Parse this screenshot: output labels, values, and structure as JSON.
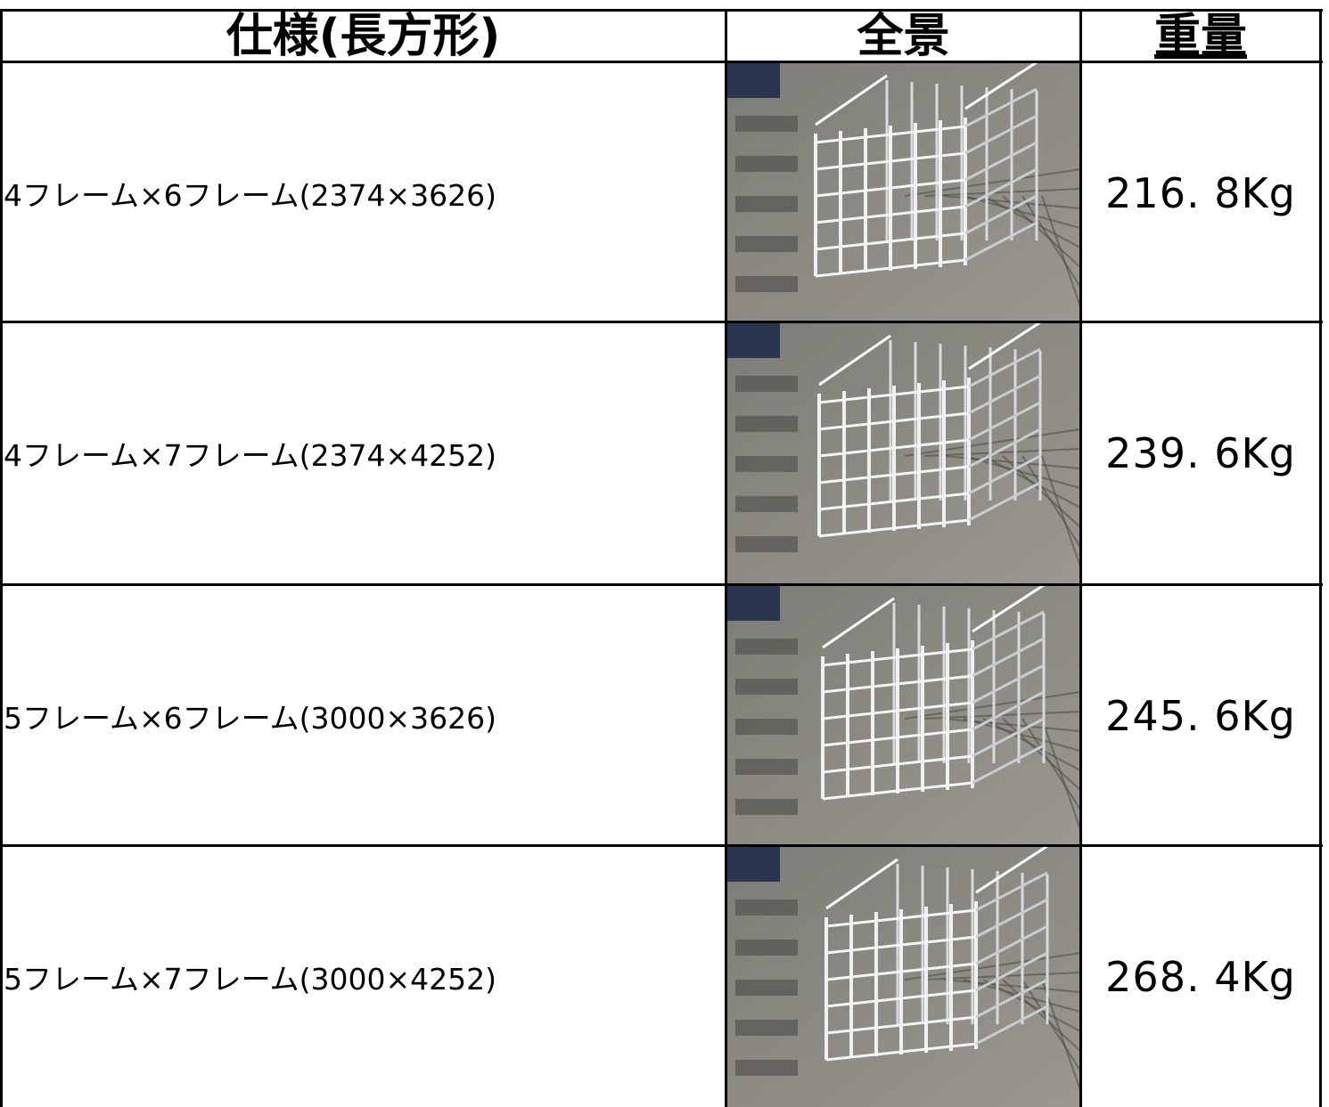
{
  "table": {
    "header": [
      "仕様(長方形)",
      "全景",
      "重量"
    ],
    "rows": [
      [
        "4フレーム×6フレーム(2374×3626)",
        "216. 8Kg"
      ],
      [
        "4フレーム×7フレーム(2374×4252)",
        "239. 6Kg"
      ],
      [
        "5フレーム×6フレーム(3000×3626)",
        "245. 6Kg"
      ],
      [
        "5フレーム×7フレーム(3000×4252)",
        "268. 4Kg"
      ]
    ]
  }
}
